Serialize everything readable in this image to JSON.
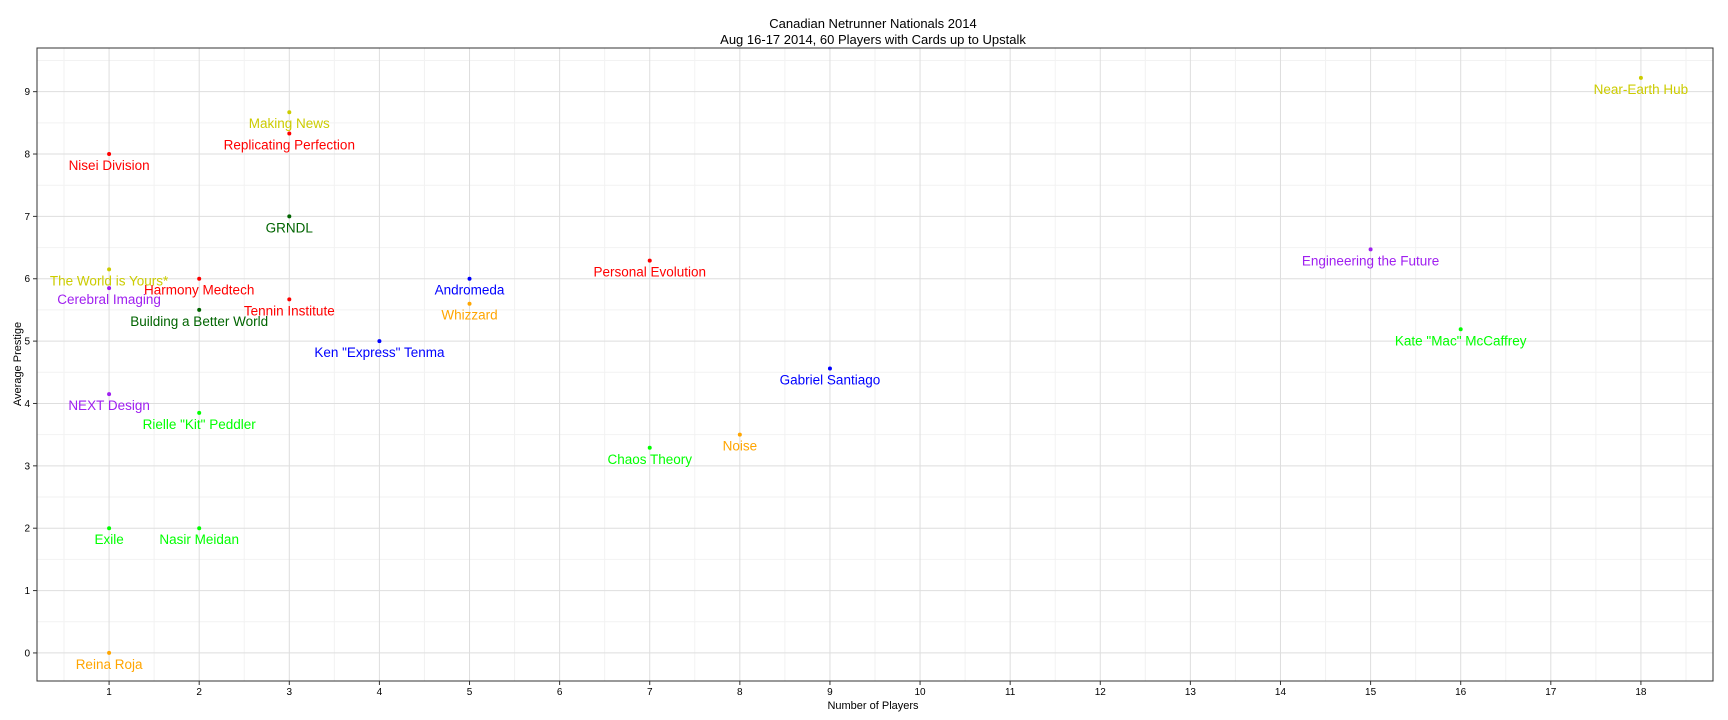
{
  "chart_data": {
    "type": "scatter",
    "title": "Canadian Netrunner Nationals 2014",
    "subtitle": "Aug 16-17 2014, 60 Players with Cards up to Upstalk",
    "xlabel": "Number of Players",
    "ylabel": "Average Prestige",
    "xlim": [
      0.2,
      18.8
    ],
    "ylim": [
      -0.45,
      9.7
    ],
    "xticks": [
      "1",
      "2",
      "3",
      "4",
      "5",
      "6",
      "7",
      "8",
      "9",
      "10",
      "11",
      "12",
      "13",
      "14",
      "15",
      "16",
      "17",
      "18"
    ],
    "yticks": [
      "0",
      "1",
      "2",
      "3",
      "4",
      "5",
      "6",
      "7",
      "8",
      "9"
    ],
    "grid": true,
    "legend": "none",
    "colors": {
      "red": "#ff0000",
      "yellow": "#cccc00",
      "darkgreen": "#006400",
      "blue": "#0000ff",
      "orange": "#ffa500",
      "purple": "#a020f0",
      "green": "#00ff00"
    },
    "points": [
      {
        "label": "Nisei Division",
        "x": 1,
        "y": 8.0,
        "color": "#ff0000"
      },
      {
        "label": "The World is Yours*",
        "x": 1,
        "y": 6.15,
        "color": "#cccc00"
      },
      {
        "label": "Cerebral Imaging",
        "x": 1,
        "y": 5.85,
        "color": "#a020f0"
      },
      {
        "label": "NEXT Design",
        "x": 1,
        "y": 4.15,
        "color": "#a020f0"
      },
      {
        "label": "Exile",
        "x": 1,
        "y": 2.0,
        "color": "#00ff00"
      },
      {
        "label": "Reina Roja",
        "x": 1,
        "y": 0.0,
        "color": "#ffa500"
      },
      {
        "label": "Harmony Medtech",
        "x": 2,
        "y": 6.0,
        "color": "#ff0000"
      },
      {
        "label": "Building a Better World",
        "x": 2,
        "y": 5.5,
        "color": "#006400"
      },
      {
        "label": "Rielle \"Kit\" Peddler",
        "x": 2,
        "y": 3.85,
        "color": "#00ff00"
      },
      {
        "label": "Nasir Meidan",
        "x": 2,
        "y": 2.0,
        "color": "#00ff00"
      },
      {
        "label": "Making News",
        "x": 3,
        "y": 8.67,
        "color": "#cccc00"
      },
      {
        "label": "Replicating Perfection",
        "x": 3,
        "y": 8.33,
        "color": "#ff0000"
      },
      {
        "label": "GRNDL",
        "x": 3,
        "y": 7.0,
        "color": "#006400"
      },
      {
        "label": "Tennin Institute",
        "x": 3,
        "y": 5.67,
        "color": "#ff0000"
      },
      {
        "label": "Ken \"Express\" Tenma",
        "x": 4,
        "y": 5.0,
        "color": "#0000ff"
      },
      {
        "label": "Andromeda",
        "x": 5,
        "y": 6.0,
        "color": "#0000ff"
      },
      {
        "label": "Whizzard",
        "x": 5,
        "y": 5.6,
        "color": "#ffa500"
      },
      {
        "label": "Personal Evolution",
        "x": 7,
        "y": 6.29,
        "color": "#ff0000"
      },
      {
        "label": "Chaos Theory",
        "x": 7,
        "y": 3.29,
        "color": "#00ff00"
      },
      {
        "label": "Noise",
        "x": 8,
        "y": 3.5,
        "color": "#ffa500"
      },
      {
        "label": "Gabriel Santiago",
        "x": 9,
        "y": 4.56,
        "color": "#0000ff"
      },
      {
        "label": "Engineering the Future",
        "x": 15,
        "y": 6.47,
        "color": "#a020f0"
      },
      {
        "label": "Kate \"Mac\" McCaffrey",
        "x": 16,
        "y": 5.19,
        "color": "#00ff00"
      },
      {
        "label": "Near-Earth Hub",
        "x": 18,
        "y": 9.22,
        "color": "#cccc00"
      }
    ]
  }
}
